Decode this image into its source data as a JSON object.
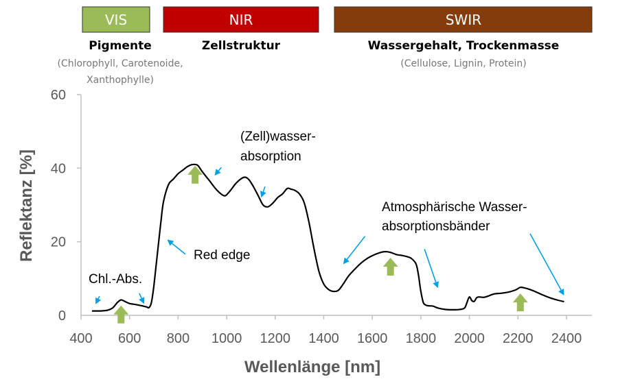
{
  "bands": [
    {
      "label": "VIS",
      "color": "#9bbb59",
      "x0": 400,
      "x1": 700
    },
    {
      "label": "NIR",
      "color": "#c00000",
      "x0": 700,
      "x1": 1300
    },
    {
      "label": "SWIR",
      "color": "#843c0c",
      "x0": 1300,
      "x1": 2500
    }
  ],
  "band_headers": [
    {
      "title": "Pigmente",
      "sub1": "(Chlorophyll, Carotenoide,",
      "sub2": "Xanthophylle)"
    },
    {
      "title": "Zellstruktur",
      "sub1": "",
      "sub2": ""
    },
    {
      "title": "Wassergehalt, Trockenmasse",
      "sub1": "(Cellulose, Lignin, Protein)",
      "sub2": ""
    }
  ],
  "annotations": {
    "chl_abs": "Chl.-Abs.",
    "red_edge": "Red edge",
    "zellwasser_1": "(Zell)wasser-",
    "zellwasser_2": "absorption",
    "atmos_1": "Atmosphärische Wasser-",
    "atmos_2": "absorptionsbänder"
  },
  "colors": {
    "curve": "#000000",
    "arrow_blue": "#00a0e6",
    "arrow_green": "#9bbb59",
    "axis": "#bfbfbf",
    "text_gray": "#595959"
  },
  "chart_data": {
    "type": "line",
    "title": "",
    "xlabel": "Wellenlänge [nm]",
    "ylabel": "Reflektanz [%]",
    "xlim": [
      400,
      2500
    ],
    "ylim": [
      0,
      60
    ],
    "xticks": [
      400,
      600,
      800,
      1000,
      1200,
      1400,
      1600,
      1800,
      2000,
      2200,
      2400
    ],
    "yticks": [
      0,
      20,
      40,
      60
    ],
    "grid": false,
    "series": [
      {
        "x": [
          445,
          480,
          510,
          530,
          550,
          565,
          580,
          600,
          620,
          650,
          670,
          680,
          690,
          700,
          710,
          720,
          730,
          740,
          760,
          780,
          800,
          820,
          840,
          860,
          880,
          900,
          930,
          960,
          990,
          1010,
          1040,
          1070,
          1090,
          1110,
          1130,
          1150,
          1170,
          1190,
          1210,
          1230,
          1250,
          1265,
          1280,
          1300,
          1320,
          1340,
          1360,
          1380,
          1400,
          1420,
          1440,
          1460,
          1480,
          1500,
          1520,
          1550,
          1580,
          1610,
          1640,
          1660,
          1680,
          1700,
          1720,
          1740,
          1760,
          1780,
          1790,
          1800,
          1810,
          1820,
          1830,
          1850,
          1870,
          1900,
          1930,
          1960,
          1980,
          1990,
          2000,
          2010,
          2020,
          2030,
          2040,
          2060,
          2080,
          2100,
          2130,
          2160,
          2190,
          2210,
          2230,
          2250,
          2270,
          2300,
          2330,
          2360,
          2390
        ],
        "y": [
          1.2,
          1.2,
          1.4,
          2.0,
          3.5,
          4.2,
          3.8,
          3.2,
          3.0,
          2.6,
          2.3,
          2.1,
          3.5,
          8.0,
          14.0,
          20.0,
          26.0,
          31.0,
          35.5,
          37.0,
          38.5,
          39.5,
          40.5,
          41.0,
          40.8,
          39.0,
          36.5,
          34.0,
          32.5,
          33.5,
          36.0,
          37.5,
          37.0,
          35.0,
          32.5,
          30.0,
          29.5,
          30.5,
          32.0,
          33.0,
          34.5,
          34.3,
          34.0,
          33.0,
          30.5,
          25.0,
          18.0,
          12.0,
          8.5,
          7.0,
          6.5,
          6.8,
          8.5,
          10.5,
          12.0,
          14.0,
          15.5,
          16.5,
          17.2,
          17.3,
          17.0,
          16.5,
          16.3,
          16.0,
          15.5,
          14.0,
          11.0,
          6.5,
          3.5,
          2.8,
          2.6,
          2.5,
          2.0,
          1.6,
          1.5,
          1.6,
          2.0,
          3.5,
          5.0,
          4.0,
          3.8,
          4.8,
          5.0,
          4.9,
          5.3,
          5.8,
          6.0,
          6.3,
          6.9,
          7.6,
          7.4,
          7.0,
          6.5,
          5.6,
          4.8,
          4.2,
          3.7
        ]
      }
    ],
    "blue_arrows": [
      {
        "tail": [
          476,
          5.2
        ],
        "head": [
          460,
          3.0
        ]
      },
      {
        "tail": [
          640,
          6.0
        ],
        "head": [
          660,
          3.1
        ]
      },
      {
        "tail": [
          830,
          16.6
        ],
        "head": [
          755,
          20.6
        ]
      },
      {
        "tail": [
          978,
          40.2
        ],
        "head": [
          950,
          38.0
        ]
      },
      {
        "tail": [
          1158,
          35.0
        ],
        "head": [
          1142,
          32.0
        ]
      },
      {
        "tail": [
          1570,
          21.5
        ],
        "head": [
          1480,
          13.9
        ]
      },
      {
        "tail": [
          1815,
          18.0
        ],
        "head": [
          1870,
          7.4
        ]
      },
      {
        "tail": [
          2250,
          22.2
        ],
        "head": [
          2390,
          5.4
        ]
      }
    ],
    "green_arrows": [
      {
        "x": 565,
        "y": -2.2
      },
      {
        "x": 870,
        "y": 35.8
      },
      {
        "x": 1675,
        "y": 10.8
      },
      {
        "x": 2210,
        "y": 1.1
      }
    ]
  }
}
